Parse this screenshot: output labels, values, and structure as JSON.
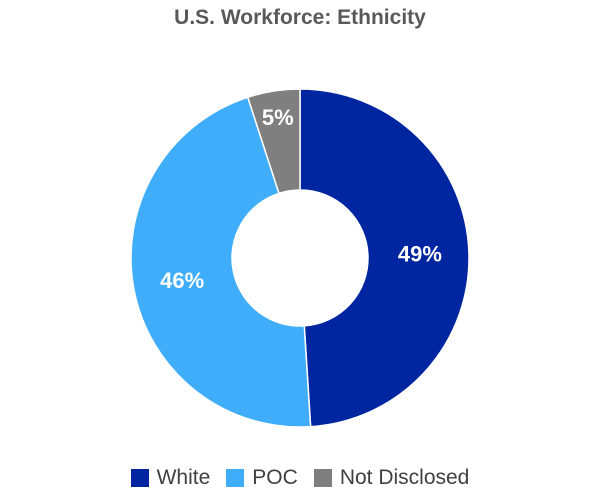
{
  "chart_data": {
    "type": "pie",
    "donut": true,
    "title": "U.S. Workforce: Ethnicity",
    "categories": [
      "White",
      "POC",
      "Not Disclosed"
    ],
    "values": [
      49,
      46,
      5
    ],
    "labels": [
      "49%",
      "46%",
      "5%"
    ],
    "colors": [
      "#0025A0",
      "#40ADFA",
      "#7F7F7F"
    ],
    "legend_position": "bottom"
  }
}
